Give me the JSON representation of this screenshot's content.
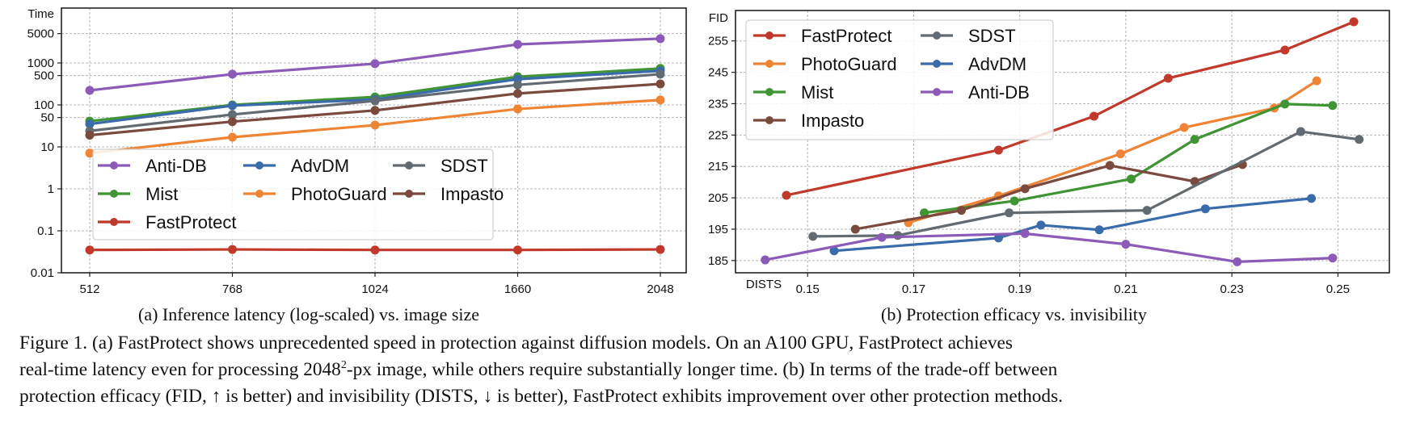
{
  "colors": {
    "FastProtect": "#c0392b",
    "PhotoGuard": "#ee8434",
    "Mist": "#3f9434",
    "Impasto": "#7b4a3e",
    "SDST": "#636b72",
    "AdvDM": "#3a6bab",
    "Anti-DB": "#8c5bb8",
    "grid": "#b5b5b5",
    "axis": "#222222"
  },
  "chart_data": [
    {
      "id": "a",
      "type": "line",
      "title": "",
      "xlabel": "",
      "ylabel": "Time",
      "yscale": "log",
      "ylim": [
        0.01,
        20000
      ],
      "grid": true,
      "categories": [
        "512",
        "768",
        "1024",
        "1660",
        "2048"
      ],
      "yticks": [
        0.01,
        0.1,
        1,
        10,
        50,
        100,
        500,
        1000,
        5000
      ],
      "ytick_labels": [
        "0.01",
        "0.1",
        "1",
        "10",
        "50",
        "100",
        "500",
        "1000",
        "5000"
      ],
      "legend": {
        "placement": "center",
        "columns": 3,
        "order": [
          "Anti-DB",
          "Mist",
          "FastProtect",
          "AdvDM",
          "PhotoGuard",
          "SDST",
          "Impasto"
        ]
      },
      "series": [
        {
          "name": "Anti-DB",
          "values": [
            222,
            540,
            960,
            2770,
            3800
          ]
        },
        {
          "name": "Mist",
          "values": [
            41,
            100,
            155,
            470,
            740
          ]
        },
        {
          "name": "AdvDM",
          "values": [
            35,
            96,
            135,
            410,
            650
          ]
        },
        {
          "name": "SDST",
          "values": [
            24,
            59,
            125,
            300,
            540
          ]
        },
        {
          "name": "Impasto",
          "values": [
            19,
            40,
            74,
            187,
            316
          ]
        },
        {
          "name": "PhotoGuard",
          "values": [
            7.1,
            17,
            33,
            80,
            131
          ]
        },
        {
          "name": "FastProtect",
          "values": [
            0.035,
            0.036,
            0.035,
            0.035,
            0.036
          ]
        }
      ]
    },
    {
      "id": "b",
      "type": "line",
      "title": "",
      "xlabel": "DISTS",
      "ylabel": "FID",
      "xlim": [
        0.1364,
        0.2597
      ],
      "ylim": [
        181.1,
        264.7
      ],
      "grid": true,
      "xticks": [
        0.15,
        0.17,
        0.19,
        0.21,
        0.23,
        0.25
      ],
      "xtick_labels": [
        "0.15",
        "0.17",
        "0.19",
        "0.21",
        "0.23",
        "0.25"
      ],
      "yticks": [
        185,
        195,
        205,
        215,
        225,
        235,
        245,
        255
      ],
      "ytick_labels": [
        "185",
        "195",
        "205",
        "215",
        "225",
        "235",
        "245",
        "255"
      ],
      "legend": {
        "placement": "top-left",
        "columns": 2,
        "order": [
          "FastProtect",
          "PhotoGuard",
          "Mist",
          "Impasto",
          "SDST",
          "AdvDM",
          "Anti-DB"
        ]
      },
      "series": [
        {
          "name": "FastProtect",
          "x": [
            0.146,
            0.186,
            0.204,
            0.218,
            0.24,
            0.253
          ],
          "y": [
            205.8,
            220.2,
            231.0,
            243.1,
            252.1,
            261.1
          ]
        },
        {
          "name": "PhotoGuard",
          "x": [
            0.169,
            0.186,
            0.209,
            0.221,
            0.238,
            0.246
          ],
          "y": [
            197.1,
            205.6,
            219.0,
            227.4,
            233.6,
            242.3
          ]
        },
        {
          "name": "Mist",
          "x": [
            0.172,
            0.189,
            0.211,
            0.223,
            0.24,
            0.249
          ],
          "y": [
            200.2,
            204.0,
            211.0,
            223.6,
            234.9,
            234.4
          ]
        },
        {
          "name": "Impasto",
          "x": [
            0.159,
            0.179,
            0.191,
            0.207,
            0.223,
            0.232
          ],
          "y": [
            195.0,
            201.0,
            207.9,
            215.3,
            210.2,
            215.6
          ]
        },
        {
          "name": "SDST",
          "x": [
            0.151,
            0.167,
            0.188,
            0.214,
            0.243,
            0.254
          ],
          "y": [
            192.7,
            193.0,
            200.2,
            201.0,
            226.1,
            223.6
          ]
        },
        {
          "name": "AdvDM",
          "x": [
            0.155,
            0.186,
            0.194,
            0.205,
            0.225,
            0.245
          ],
          "y": [
            188.1,
            192.2,
            196.3,
            194.8,
            201.5,
            204.8
          ]
        },
        {
          "name": "Anti-DB",
          "x": [
            0.142,
            0.164,
            0.191,
            0.21,
            0.231,
            0.249
          ],
          "y": [
            185.2,
            192.4,
            193.6,
            190.2,
            184.6,
            185.8
          ]
        }
      ]
    }
  ],
  "subcaptions": {
    "a": "(a) Inference latency (log-scaled) vs. image size",
    "b": "(b) Protection efficacy vs. invisibility"
  },
  "caption": {
    "line1": "Figure 1.  (a) FastProtect shows unprecedented speed in protection against diffusion models.  On an A100 GPU, FastProtect achieves",
    "line2_pre": "real-time latency even for processing 2048",
    "line2_sup": "2",
    "line2_post": "-px image, while others require substantially longer time. (b) In terms of the trade-off between",
    "line3": "protection efficacy (FID, ↑ is better) and invisibility (DISTS, ↓ is better), FastProtect exhibits improvement over other protection methods."
  }
}
